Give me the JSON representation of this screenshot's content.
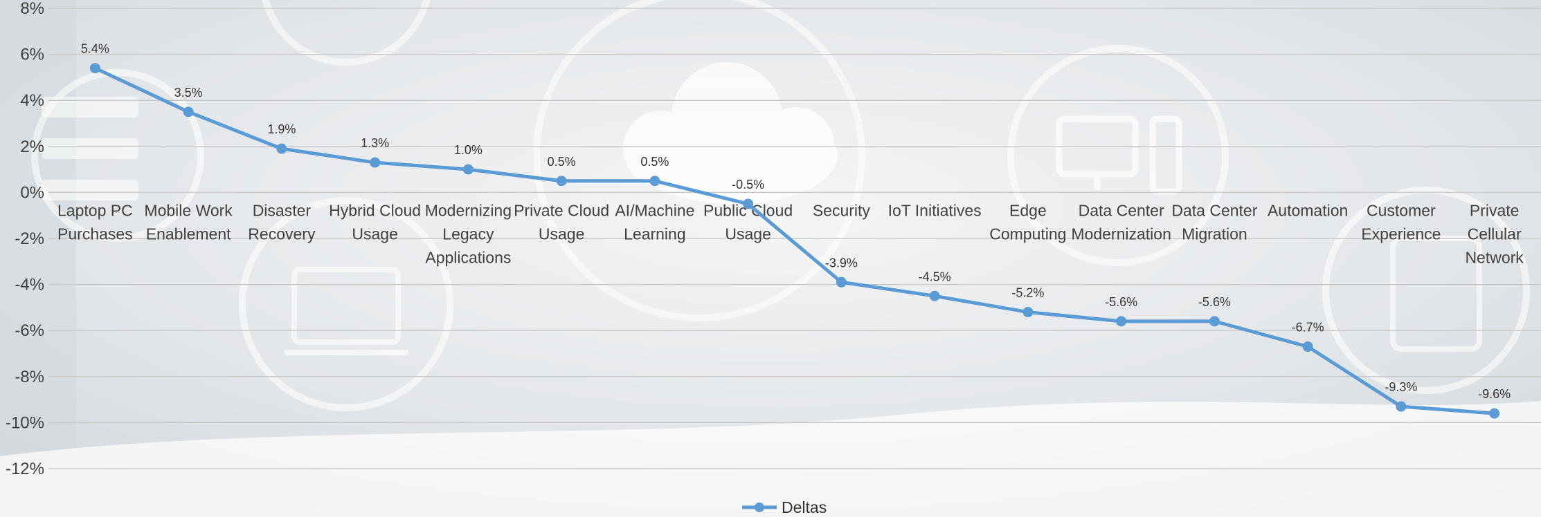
{
  "chart_data": {
    "type": "line",
    "categories": [
      [
        "Laptop PC",
        "Purchases"
      ],
      [
        "Mobile Work",
        "Enablement"
      ],
      [
        "Disaster",
        "Recovery"
      ],
      [
        "Hybrid Cloud",
        "Usage"
      ],
      [
        "Modernizing",
        "Legacy",
        "Applications"
      ],
      [
        "Private Cloud",
        "Usage"
      ],
      [
        "AI/Machine",
        "Learning"
      ],
      [
        "Public Cloud",
        "Usage"
      ],
      [
        "Security"
      ],
      [
        "IoT Initiatives"
      ],
      [
        "Edge",
        "Computing"
      ],
      [
        "Data Center",
        "Modernization"
      ],
      [
        "Data Center",
        "Migration"
      ],
      [
        "Automation"
      ],
      [
        "Customer",
        "Experience"
      ],
      [
        "Private",
        "Cellular",
        "Network"
      ]
    ],
    "series": [
      {
        "name": "Deltas",
        "values": [
          5.4,
          3.5,
          1.9,
          1.3,
          1.0,
          0.5,
          0.5,
          -0.5,
          -3.9,
          -4.5,
          -5.2,
          -5.6,
          -5.6,
          -6.7,
          -9.3,
          -9.6
        ],
        "data_labels": [
          "5.4%",
          "3.5%",
          "1.9%",
          "1.3%",
          "1.0%",
          "0.5%",
          "0.5%",
          "-0.5%",
          "-3.9%",
          "-4.5%",
          "-5.2%",
          "-5.6%",
          "-5.6%",
          "-6.7%",
          "-9.3%",
          "-9.6%"
        ],
        "color": "#5b9bd5"
      }
    ],
    "y_ticks": [
      8,
      6,
      4,
      2,
      0,
      -2,
      -4,
      -6,
      -8,
      -10,
      -12
    ],
    "y_tick_labels": [
      "8%",
      "6%",
      "4%",
      "2%",
      "0%",
      "-2%",
      "-4%",
      "-6%",
      "-8%",
      "-10%",
      "-12%"
    ],
    "ylim": [
      -12,
      8
    ],
    "grid": true,
    "legend_position": "bottom",
    "title": "",
    "xlabel": "",
    "ylabel": ""
  },
  "legend": {
    "label": "Deltas"
  },
  "colors": {
    "series": "#5b9bd5",
    "grid": "#c9c9c9",
    "background": "#e9ecef"
  }
}
